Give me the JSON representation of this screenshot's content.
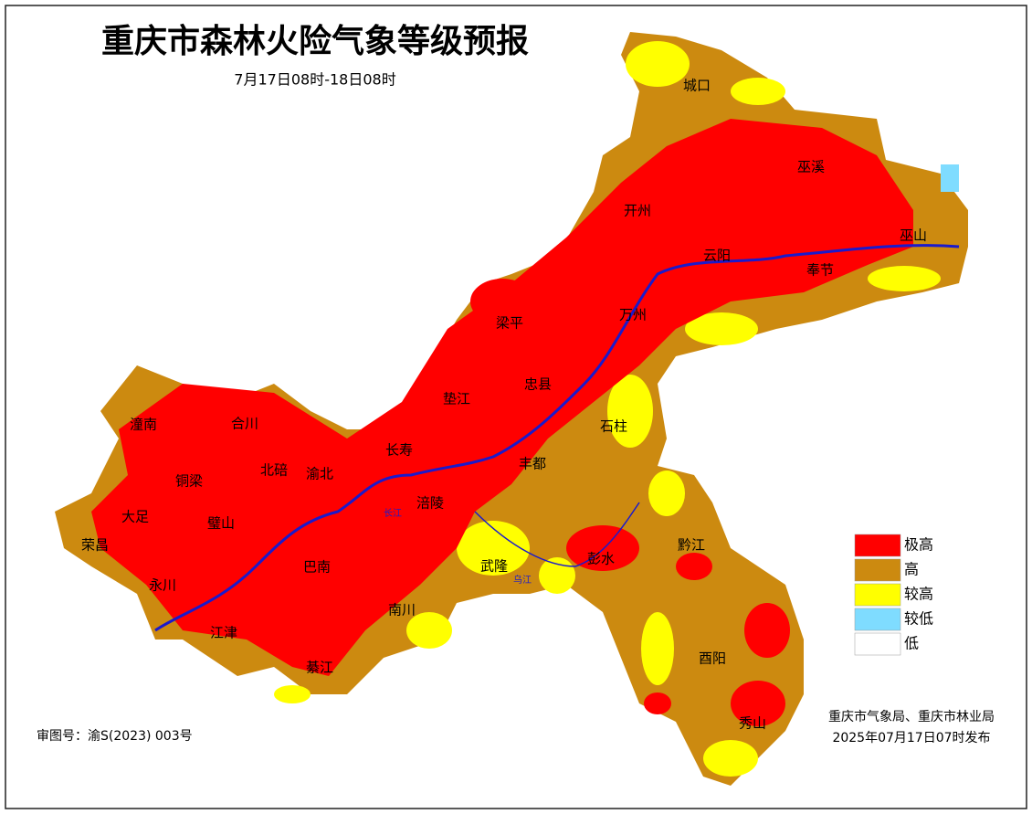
{
  "header": {
    "title": "重庆市森林火险气象等级预报",
    "subtitle": "7月17日08时-18日08时"
  },
  "map": {
    "districts": [
      "城口",
      "巫溪",
      "开州",
      "云阳",
      "巫山",
      "奉节",
      "梁平",
      "万州",
      "忠县",
      "垫江",
      "石柱",
      "长寿",
      "丰都",
      "潼南",
      "合川",
      "铜梁",
      "北碚",
      "渝北",
      "大足",
      "璧山",
      "荣昌",
      "永川",
      "巴南",
      "涪陵",
      "武隆",
      "彭水",
      "黔江",
      "南川",
      "江津",
      "綦江",
      "酉阳",
      "秀山"
    ],
    "rivers": [
      "长江",
      "乌江"
    ]
  },
  "legend": {
    "items": [
      {
        "label": "极高",
        "color": "#ff0000"
      },
      {
        "label": "高",
        "color": "#cc8a10"
      },
      {
        "label": "较高",
        "color": "#ffff00"
      },
      {
        "label": "较低",
        "color": "#7fdcff"
      },
      {
        "label": "低",
        "color": "#ffffff"
      }
    ]
  },
  "footer": {
    "review_number": "审图号：渝S(2023) 003号",
    "issuer": "重庆市气象局、重庆市林业局",
    "issued": "2025年07月17日07时发布"
  }
}
